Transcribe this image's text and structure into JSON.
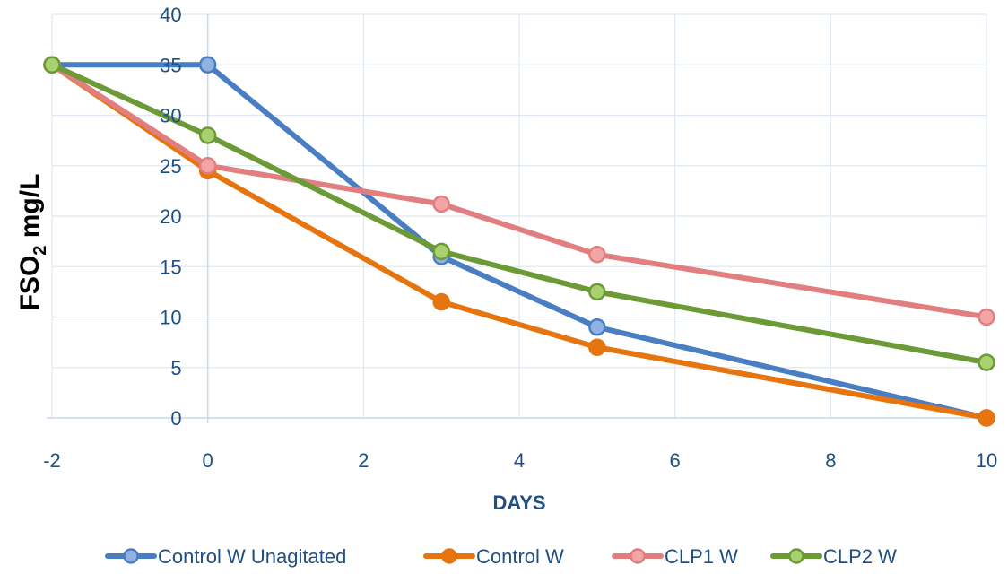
{
  "chart_data": {
    "type": "line",
    "xlabel": "DAYS",
    "ylabel": {
      "prefix": "FSO",
      "subscript": "2",
      "suffix": " mg/L"
    },
    "xlim": [
      -2,
      10
    ],
    "ylim": [
      0,
      40
    ],
    "xticks": [
      -2,
      0,
      2,
      4,
      6,
      8,
      10
    ],
    "yticks": [
      0,
      5,
      10,
      15,
      20,
      25,
      30,
      35,
      40
    ],
    "grid": true,
    "legend_position": "bottom",
    "series": [
      {
        "name": "Control W Unagitated",
        "color": "#4a7ec2",
        "marker_fill": "#8fb2e0",
        "x": [
          -2,
          0,
          3,
          5,
          10
        ],
        "y": [
          35,
          35,
          16,
          9,
          0
        ]
      },
      {
        "name": "Control W",
        "color": "#e6740f",
        "marker_fill": "#e6740f",
        "x": [
          -2,
          0,
          3,
          5,
          10
        ],
        "y": [
          35,
          24.5,
          11.5,
          7,
          0
        ]
      },
      {
        "name": "CLP1 W",
        "color": "#e17f80",
        "marker_fill": "#f2a5a5",
        "x": [
          -2,
          0,
          3,
          5,
          10
        ],
        "y": [
          35,
          25,
          21.2,
          16.2,
          10
        ]
      },
      {
        "name": "CLP2 W",
        "color": "#6b9a36",
        "marker_fill": "#a8d26f",
        "x": [
          -2,
          0,
          3,
          5,
          10
        ],
        "y": [
          35,
          28,
          16.5,
          12.5,
          5.5
        ]
      }
    ]
  }
}
